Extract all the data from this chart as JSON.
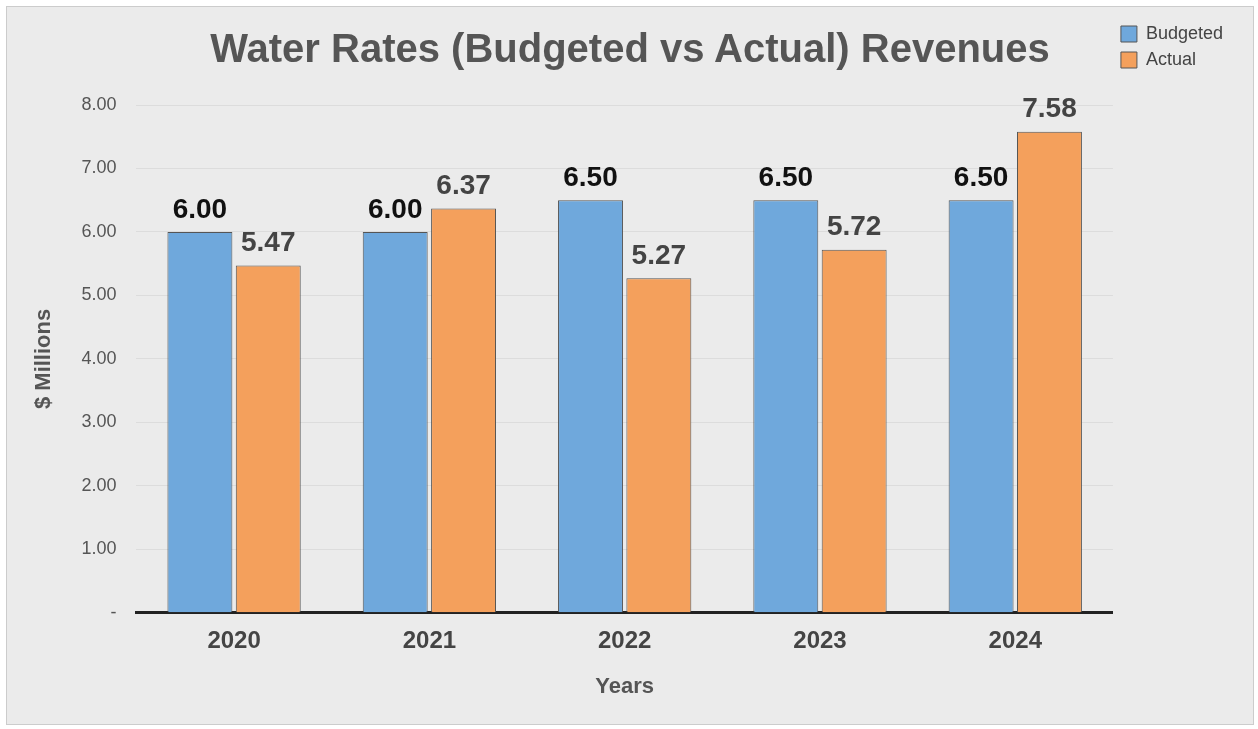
{
  "chart_data": {
    "type": "bar",
    "title": "Water Rates (Budgeted vs Actual) Revenues",
    "xlabel": "Years",
    "ylabel": "$ Millions",
    "categories": [
      "2020",
      "2021",
      "2022",
      "2023",
      "2024"
    ],
    "series": [
      {
        "name": "Budgeted",
        "color": "#6fa8dc",
        "values": [
          6.0,
          6.0,
          6.5,
          6.5,
          6.5
        ],
        "value_labels": [
          "6.00",
          "6.00",
          "6.50",
          "6.50",
          "6.50"
        ]
      },
      {
        "name": "Actual",
        "color": "#f4a05c",
        "values": [
          5.47,
          6.37,
          5.27,
          5.72,
          7.58
        ],
        "value_labels": [
          "5.47",
          "6.37",
          "5.27",
          "5.72",
          "7.58"
        ]
      }
    ],
    "ylim": [
      0,
      8
    ],
    "yticks": [
      {
        "value": 0,
        "label": "-"
      },
      {
        "value": 1,
        "label": "1.00"
      },
      {
        "value": 2,
        "label": "2.00"
      },
      {
        "value": 3,
        "label": "3.00"
      },
      {
        "value": 4,
        "label": "4.00"
      },
      {
        "value": 5,
        "label": "5.00"
      },
      {
        "value": 6,
        "label": "6.00"
      },
      {
        "value": 7,
        "label": "7.00"
      },
      {
        "value": 8,
        "label": "8.00"
      }
    ],
    "grid": "y",
    "legend": "top right"
  }
}
